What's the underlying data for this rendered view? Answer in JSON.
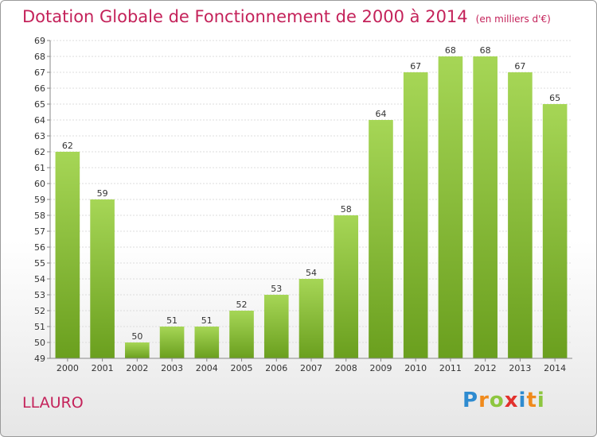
{
  "header": {
    "title": "Dotation Globale de Fonctionnement de 2000 à 2014",
    "unit": "(en milliers d'€)"
  },
  "footer": {
    "city": "LLAURO",
    "logo_letters": [
      "P",
      "r",
      "o",
      "x",
      "i",
      "t",
      "i"
    ],
    "logo_colors": [
      "#2e8bd0",
      "#f08a1c",
      "#8dc63f",
      "#e2312d",
      "#2e8bd0",
      "#f08a1c",
      "#8dc63f"
    ]
  },
  "chart_data": {
    "type": "bar",
    "title": "Dotation Globale de Fonctionnement de 2000 à 2014",
    "categories": [
      "2000",
      "2001",
      "2002",
      "2003",
      "2004",
      "2005",
      "2006",
      "2007",
      "2008",
      "2009",
      "2010",
      "2011",
      "2012",
      "2013",
      "2014"
    ],
    "values": [
      62,
      59,
      50,
      51,
      51,
      52,
      53,
      54,
      58,
      64,
      67,
      68,
      68,
      67,
      65
    ],
    "ylim": [
      49,
      69
    ],
    "yticks": [
      49,
      50,
      51,
      52,
      53,
      54,
      55,
      56,
      57,
      58,
      59,
      60,
      61,
      62,
      63,
      64,
      65,
      66,
      67,
      68,
      69
    ],
    "grid": true,
    "bar_color_top": "#a6d656",
    "bar_color_bottom": "#6a9f1e"
  }
}
